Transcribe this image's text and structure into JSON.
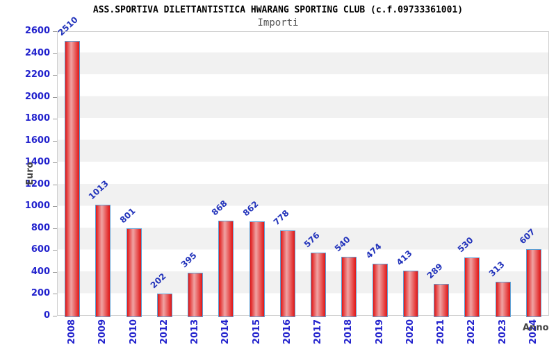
{
  "header": {
    "title": "ASS.SPORTIVA DILETTANTISTICA HWARANG SPORTING CLUB (c.f.09733361001)",
    "subtitle": "Importi"
  },
  "chart_data": {
    "type": "bar",
    "title": "Importi",
    "xlabel": "Anno",
    "ylabel": "Euro",
    "categories": [
      "2008",
      "2009",
      "2010",
      "2012",
      "2013",
      "2014",
      "2015",
      "2016",
      "2017",
      "2018",
      "2019",
      "2020",
      "2021",
      "2022",
      "2023",
      "2024"
    ],
    "values": [
      2510,
      1013,
      801,
      202,
      395,
      868,
      862,
      778,
      576,
      540,
      474,
      413,
      289,
      530,
      313,
      607
    ],
    "ylim": [
      0,
      2600
    ],
    "ytick_step": 200,
    "grid": "horizontal-bands",
    "legend": "none",
    "colors": {
      "bar_edge_red": "#e01616",
      "bar_center_highlight": "#f0a3a3",
      "bar_border_blue": "#5e9fd4",
      "tick_text_blue": "#2222cd",
      "value_text_blue": "#2233bb",
      "axis_title_gray": "#444444",
      "band_gray": "#f1f1f1",
      "plot_border_gray": "#cfcfcf"
    }
  }
}
